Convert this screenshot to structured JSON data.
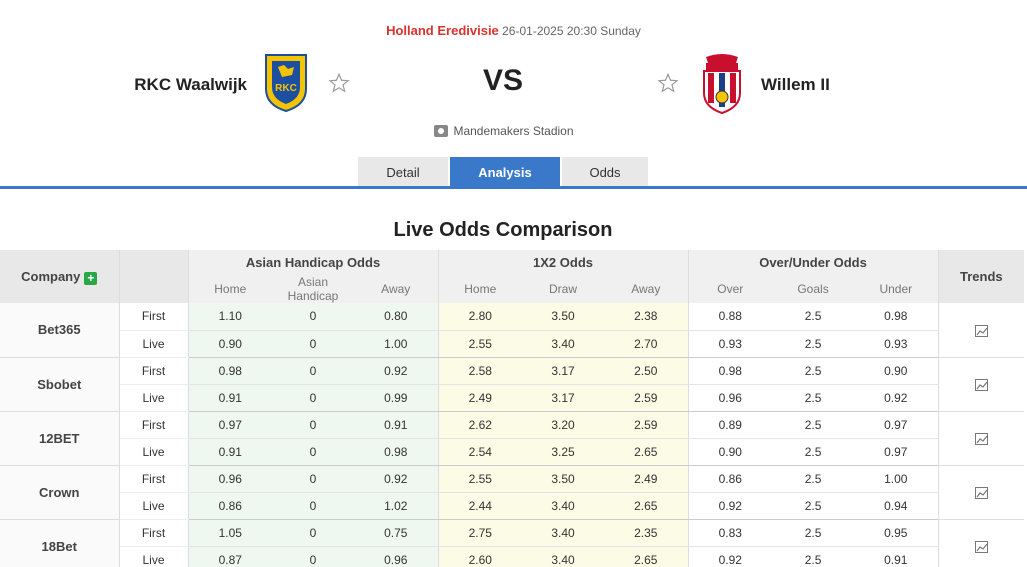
{
  "match": {
    "league": "Holland Eredivisie",
    "datetime": "26-01-2025 20:30 Sunday",
    "home_team": "RKC Waalwijk",
    "away_team": "Willem II",
    "vs": "VS",
    "venue": "Mandemakers Stadion"
  },
  "tabs": [
    "Detail",
    "Analysis",
    "Odds"
  ],
  "active_tab": "Analysis",
  "section_title": "Live Odds Comparison",
  "table": {
    "company_header": "Company",
    "plus_label": "+",
    "groups": [
      "Asian Handicap Odds",
      "1X2 Odds",
      "Over/Under Odds"
    ],
    "trends_header": "Trends",
    "subheaders": [
      "Home",
      "Asian Handicap",
      "Away",
      "Home",
      "Draw",
      "Away",
      "Over",
      "Goals",
      "Under"
    ],
    "rows": [
      {
        "company": "Bet365",
        "first": [
          "1.10",
          "0",
          "0.80",
          "2.80",
          "3.50",
          "2.38",
          "0.88",
          "2.5",
          "0.98"
        ],
        "live": [
          "0.90",
          "0",
          "1.00",
          "2.55",
          "3.40",
          "2.70",
          "0.93",
          "2.5",
          "0.93"
        ]
      },
      {
        "company": "Sbobet",
        "first": [
          "0.98",
          "0",
          "0.92",
          "2.58",
          "3.17",
          "2.50",
          "0.98",
          "2.5",
          "0.90"
        ],
        "live": [
          "0.91",
          "0",
          "0.99",
          "2.49",
          "3.17",
          "2.59",
          "0.96",
          "2.5",
          "0.92"
        ]
      },
      {
        "company": "12BET",
        "first": [
          "0.97",
          "0",
          "0.91",
          "2.62",
          "3.20",
          "2.59",
          "0.89",
          "2.5",
          "0.97"
        ],
        "live": [
          "0.91",
          "0",
          "0.98",
          "2.54",
          "3.25",
          "2.65",
          "0.90",
          "2.5",
          "0.97"
        ]
      },
      {
        "company": "Crown",
        "first": [
          "0.96",
          "0",
          "0.92",
          "2.55",
          "3.50",
          "2.49",
          "0.86",
          "2.5",
          "1.00"
        ],
        "live": [
          "0.86",
          "0",
          "1.02",
          "2.44",
          "3.40",
          "2.65",
          "0.92",
          "2.5",
          "0.94"
        ]
      },
      {
        "company": "18Bet",
        "first": [
          "1.05",
          "0",
          "0.75",
          "2.75",
          "3.40",
          "2.35",
          "0.83",
          "2.5",
          "0.95"
        ],
        "live": [
          "0.87",
          "0",
          "0.96",
          "2.60",
          "3.40",
          "2.65",
          "0.92",
          "2.5",
          "0.91"
        ]
      }
    ],
    "first_label": "First",
    "live_label": "Live"
  },
  "icons": {
    "star": "star-outline-icon",
    "venue": "stadium-icon",
    "trend": "line-chart-icon"
  },
  "colors": {
    "accent": "#3a78c9",
    "league": "#d9322f",
    "plus": "#28a745"
  }
}
